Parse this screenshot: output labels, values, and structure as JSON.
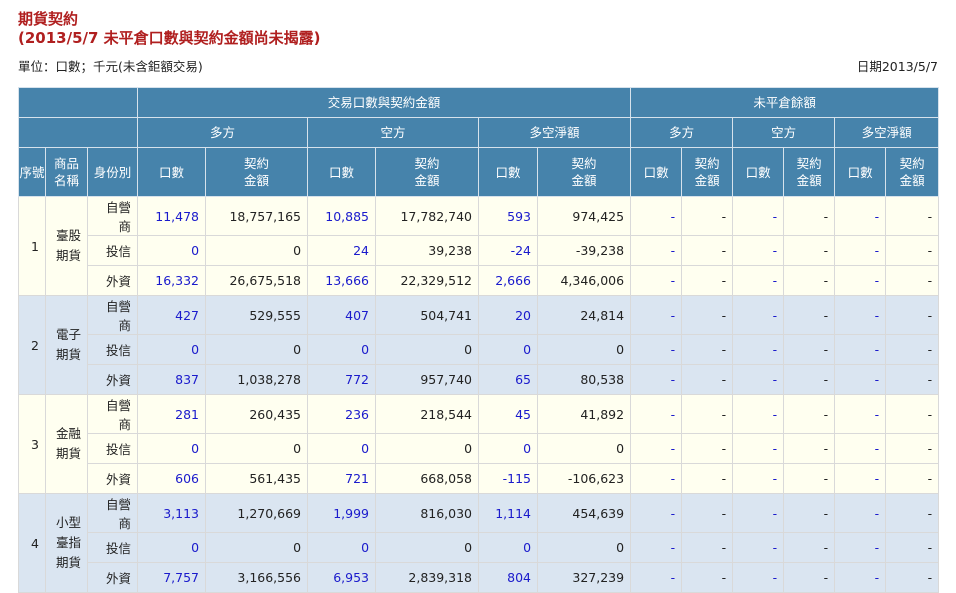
{
  "page": {
    "title": "期貨契約",
    "subtitle": "(2013/5/7 未平倉口數與契約金額尚未揭露)",
    "unit": "單位：口數；千元(未含鉅額交易)",
    "date": "日期2013/5/7"
  },
  "headers": {
    "trade_group": "交易口數與契約金額",
    "oi_group": "未平倉餘額",
    "long": "多方",
    "short": "空方",
    "net": "多空淨額",
    "seq": "序號",
    "product": "商品名稱",
    "identity": "身份別",
    "lots": "口數",
    "amount": "契約金額"
  },
  "products": [
    {
      "seq": "1",
      "name": "臺股期貨",
      "rows": [
        {
          "role": "自營商",
          "long_lots": "11,478",
          "long_amt": "18,757,165",
          "short_lots": "10,885",
          "short_amt": "17,782,740",
          "net_lots": "593",
          "net_amt": "974,425"
        },
        {
          "role": "投信",
          "long_lots": "0",
          "long_amt": "0",
          "short_lots": "24",
          "short_amt": "39,238",
          "net_lots": "-24",
          "net_amt": "-39,238"
        },
        {
          "role": "外資",
          "long_lots": "16,332",
          "long_amt": "26,675,518",
          "short_lots": "13,666",
          "short_amt": "22,329,512",
          "net_lots": "2,666",
          "net_amt": "4,346,006"
        }
      ]
    },
    {
      "seq": "2",
      "name": "電子期貨",
      "rows": [
        {
          "role": "自營商",
          "long_lots": "427",
          "long_amt": "529,555",
          "short_lots": "407",
          "short_amt": "504,741",
          "net_lots": "20",
          "net_amt": "24,814"
        },
        {
          "role": "投信",
          "long_lots": "0",
          "long_amt": "0",
          "short_lots": "0",
          "short_amt": "0",
          "net_lots": "0",
          "net_amt": "0"
        },
        {
          "role": "外資",
          "long_lots": "837",
          "long_amt": "1,038,278",
          "short_lots": "772",
          "short_amt": "957,740",
          "net_lots": "65",
          "net_amt": "80,538"
        }
      ]
    },
    {
      "seq": "3",
      "name": "金融期貨",
      "rows": [
        {
          "role": "自營商",
          "long_lots": "281",
          "long_amt": "260,435",
          "short_lots": "236",
          "short_amt": "218,544",
          "net_lots": "45",
          "net_amt": "41,892"
        },
        {
          "role": "投信",
          "long_lots": "0",
          "long_amt": "0",
          "short_lots": "0",
          "short_amt": "0",
          "net_lots": "0",
          "net_amt": "0"
        },
        {
          "role": "外資",
          "long_lots": "606",
          "long_amt": "561,435",
          "short_lots": "721",
          "short_amt": "668,058",
          "net_lots": "-115",
          "net_amt": "-106,623"
        }
      ]
    },
    {
      "seq": "4",
      "name": "小型臺指期貨",
      "rows": [
        {
          "role": "自營商",
          "long_lots": "3,113",
          "long_amt": "1,270,669",
          "short_lots": "1,999",
          "short_amt": "816,030",
          "net_lots": "1,114",
          "net_amt": "454,639"
        },
        {
          "role": "投信",
          "long_lots": "0",
          "long_amt": "0",
          "short_lots": "0",
          "short_amt": "0",
          "net_lots": "0",
          "net_amt": "0"
        },
        {
          "role": "外資",
          "long_lots": "7,757",
          "long_amt": "3,166,556",
          "short_lots": "6,953",
          "short_amt": "2,839,318",
          "net_lots": "804",
          "net_amt": "327,239"
        }
      ]
    }
  ],
  "oi_placeholder": "-",
  "colors": {
    "header_bg": "#4683ab",
    "odd_bg": "#fffff0",
    "even_bg": "#dae5f1",
    "title": "#b01f1f",
    "link": "#1a1acc"
  }
}
